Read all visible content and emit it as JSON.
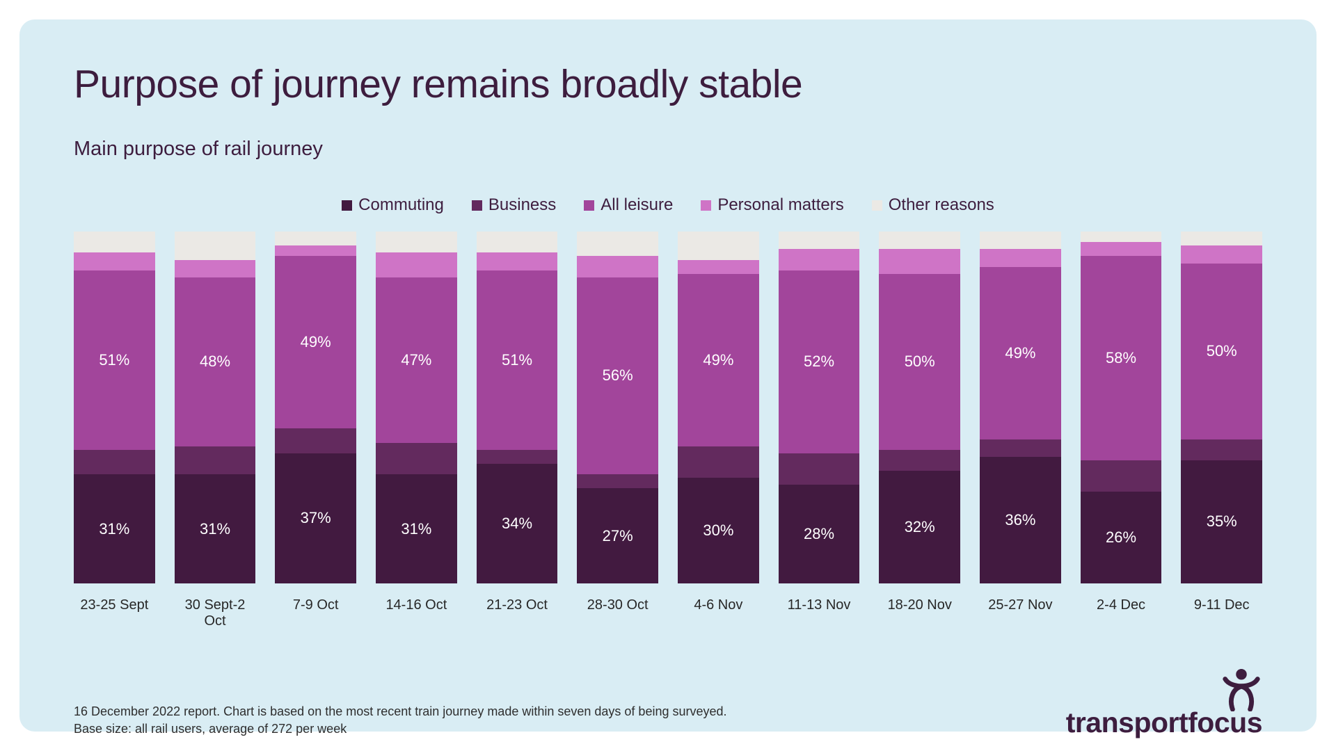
{
  "page": {
    "title": "Purpose of journey remains broadly stable",
    "subtitle": "Main purpose of rail journey",
    "footnote_line1": "16 December 2022 report. Chart is based on the most recent train journey made within seven days of being surveyed.",
    "footnote_line2": "Base size: all rail users, average of 272 per week",
    "brand": "transportfocus"
  },
  "colors": {
    "panel_bg": "#d9edf4",
    "title_text": "#3d1d3e",
    "commuting": "#421a40",
    "business": "#632a5e",
    "all_leisure": "#a2459b",
    "personal_matters": "#cf74c6",
    "other_reasons": "#ebe9e5",
    "bar_label_text": "#ffffff"
  },
  "chart_data": {
    "type": "bar",
    "stacked": true,
    "percent": true,
    "unit": "%",
    "ylim": [
      0,
      100
    ],
    "grid": false,
    "legend_position": "top-center",
    "title": "Main purpose of rail journey",
    "xlabel": "",
    "ylabel": "",
    "categories": [
      "23-25 Sept",
      "30 Sept-2 Oct",
      "7-9 Oct",
      "14-16 Oct",
      "21-23 Oct",
      "28-30 Oct",
      "4-6 Nov",
      "11-13 Nov",
      "18-20 Nov",
      "25-27 Nov",
      "2-4 Dec",
      "9-11 Dec"
    ],
    "series": [
      {
        "name": "Commuting",
        "color_key": "commuting",
        "labeled": true,
        "values": [
          31,
          31,
          37,
          31,
          34,
          27,
          30,
          28,
          32,
          36,
          26,
          35
        ]
      },
      {
        "name": "Business",
        "color_key": "business",
        "labeled": false,
        "values": [
          7,
          8,
          7,
          9,
          4,
          4,
          9,
          9,
          6,
          5,
          9,
          6
        ]
      },
      {
        "name": "All leisure",
        "color_key": "all_leisure",
        "labeled": true,
        "values": [
          51,
          48,
          49,
          47,
          51,
          56,
          49,
          52,
          50,
          49,
          58,
          50
        ]
      },
      {
        "name": "Personal matters",
        "color_key": "personal_matters",
        "labeled": false,
        "values": [
          5,
          5,
          3,
          7,
          5,
          6,
          4,
          6,
          7,
          5,
          4,
          5
        ]
      },
      {
        "name": "Other reasons",
        "color_key": "other_reasons",
        "labeled": false,
        "values": [
          6,
          8,
          4,
          6,
          6,
          7,
          8,
          5,
          5,
          5,
          3,
          4
        ]
      }
    ],
    "note": "Only Commuting and All leisure segments carry on-chart data labels; other segment values estimated from pixel heights."
  }
}
